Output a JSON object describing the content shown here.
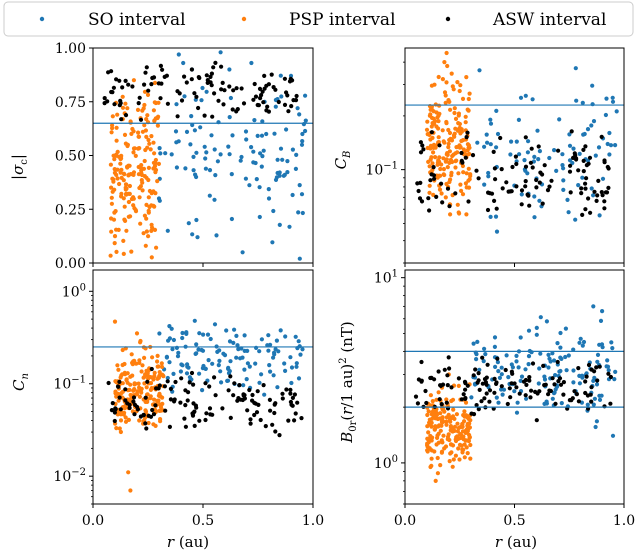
{
  "legend": {
    "entries": [
      {
        "label": "SO interval",
        "color": "#1f77b4"
      },
      {
        "label": "PSP interval",
        "color": "#ff7f0e"
      },
      {
        "label": "ASW interval",
        "color": "#000000"
      }
    ],
    "placement": "top, spanning full width"
  },
  "chart_data": [
    {
      "type": "scatter",
      "panel": "top-left",
      "ylabel": "|σc|",
      "xlim": [
        0,
        1
      ],
      "ylim": [
        0,
        1
      ],
      "yscale": "linear",
      "yticks": [
        "0.00",
        "0.25",
        "0.50",
        "0.75",
        "1.00"
      ],
      "hline": 0.65,
      "series": [
        {
          "name": "SO interval",
          "color": "#1f77b4",
          "cluster": {
            "r": [
              0.3,
              0.97
            ],
            "y": [
              0.02,
              0.97
            ],
            "n": 110
          },
          "points": [
            [
              0.39,
              0.97
            ],
            [
              0.41,
              0.93
            ],
            [
              0.45,
              0.9
            ],
            [
              0.58,
              0.98
            ],
            [
              0.62,
              0.9
            ],
            [
              0.72,
              0.93
            ],
            [
              0.78,
              0.75
            ],
            [
              0.9,
              0.87
            ],
            [
              0.93,
              0.72
            ],
            [
              0.95,
              0.55
            ],
            [
              0.95,
              0.32
            ],
            [
              0.94,
              0.02
            ],
            [
              0.68,
              0.05
            ],
            [
              0.47,
              0.2
            ],
            [
              0.42,
              0.44
            ],
            [
              0.3,
              0.3
            ],
            [
              0.34,
              0.15
            ],
            [
              0.8,
              0.3
            ],
            [
              0.86,
              0.48
            ]
          ]
        },
        {
          "name": "PSP interval",
          "color": "#ff7f0e",
          "cluster": {
            "r": [
              0.08,
              0.3
            ],
            "y": [
              0.0,
              0.87
            ],
            "n": 200
          }
        },
        {
          "name": "ASW interval",
          "color": "#000000",
          "cluster": {
            "r": [
              0.05,
              0.95
            ],
            "y": [
              0.65,
              0.96
            ],
            "n": 110
          }
        }
      ]
    },
    {
      "type": "scatter",
      "panel": "top-right",
      "ylabel": "CB",
      "xlim": [
        0,
        1
      ],
      "ylim": [
        0.03,
        0.48
      ],
      "yscale": "log",
      "yticks": [
        "10^-1"
      ],
      "hline": 0.23,
      "series": [
        {
          "name": "SO interval",
          "color": "#1f77b4",
          "cluster": {
            "r": [
              0.3,
              0.97
            ],
            "y": [
              0.04,
              0.38
            ],
            "n": 90
          },
          "points": [
            [
              0.34,
              0.36
            ],
            [
              0.78,
              0.37
            ],
            [
              0.92,
              0.25
            ],
            [
              0.95,
              0.24
            ],
            [
              0.52,
              0.19
            ],
            [
              0.42,
              0.045
            ]
          ]
        },
        {
          "name": "PSP interval",
          "color": "#ff7f0e",
          "cluster": {
            "r": [
              0.1,
              0.3
            ],
            "y": [
              0.04,
              0.45
            ],
            "n": 200
          },
          "points": [
            [
              0.19,
              0.45
            ],
            [
              0.18,
              0.4
            ],
            [
              0.28,
              0.33
            ]
          ]
        },
        {
          "name": "ASW interval",
          "color": "#000000",
          "cluster": {
            "r": [
              0.05,
              0.95
            ],
            "y": [
              0.038,
              0.2
            ],
            "n": 120
          }
        }
      ]
    },
    {
      "type": "scatter",
      "panel": "bottom-left",
      "ylabel": "Cn",
      "xlim": [
        0,
        1
      ],
      "ylim": [
        0.005,
        1.7
      ],
      "yscale": "log",
      "yticks": [
        "10^-2",
        "10^-1",
        "10^0"
      ],
      "xticks": [
        "0.0",
        "0.5",
        "1.0"
      ],
      "xlabel": "r (au)",
      "hline": 0.25,
      "series": [
        {
          "name": "SO interval",
          "color": "#1f77b4",
          "cluster": {
            "r": [
              0.3,
              0.97
            ],
            "y": [
              0.05,
              0.7
            ],
            "n": 130
          }
        },
        {
          "name": "PSP interval",
          "color": "#ff7f0e",
          "cluster": {
            "r": [
              0.1,
              0.32
            ],
            "y": [
              0.02,
              0.35
            ],
            "n": 200
          },
          "points": [
            [
              0.17,
              0.007
            ],
            [
              0.16,
              0.011
            ],
            [
              0.1,
              0.47
            ],
            [
              0.2,
              0.35
            ],
            [
              0.26,
              0.25
            ]
          ]
        },
        {
          "name": "ASW interval",
          "color": "#000000",
          "cluster": {
            "r": [
              0.07,
              0.95
            ],
            "y": [
              0.02,
              0.2
            ],
            "n": 130
          }
        }
      ]
    },
    {
      "type": "scatter",
      "panel": "bottom-right",
      "ylabel": "B0r(r/1 au)^2 (nT)",
      "xlim": [
        0,
        1
      ],
      "ylim": [
        0.6,
        11
      ],
      "yscale": "log",
      "yticks": [
        "10^0",
        "10^1"
      ],
      "xticks": [
        "0.0",
        "0.5",
        "1.0"
      ],
      "xlabel": "r (au)",
      "hlines": [
        4.0,
        2.0
      ],
      "series": [
        {
          "name": "SO interval",
          "color": "#1f77b4",
          "cluster": {
            "r": [
              0.3,
              0.97
            ],
            "y": [
              1.4,
              7.2
            ],
            "n": 150
          },
          "points": [
            [
              0.86,
              7.0
            ],
            [
              0.9,
              6.6
            ],
            [
              0.95,
              1.4
            ]
          ]
        },
        {
          "name": "PSP interval",
          "color": "#ff7f0e",
          "cluster": {
            "r": [
              0.1,
              0.3
            ],
            "y": [
              0.8,
              3.0
            ],
            "n": 200
          },
          "points": [
            [
              0.14,
              0.8
            ],
            [
              0.15,
              0.88
            ],
            [
              0.2,
              3.0
            ]
          ]
        },
        {
          "name": "ASW interval",
          "color": "#000000",
          "cluster": {
            "r": [
              0.05,
              0.95
            ],
            "y": [
              1.6,
              4.2
            ],
            "n": 130
          }
        }
      ]
    }
  ]
}
